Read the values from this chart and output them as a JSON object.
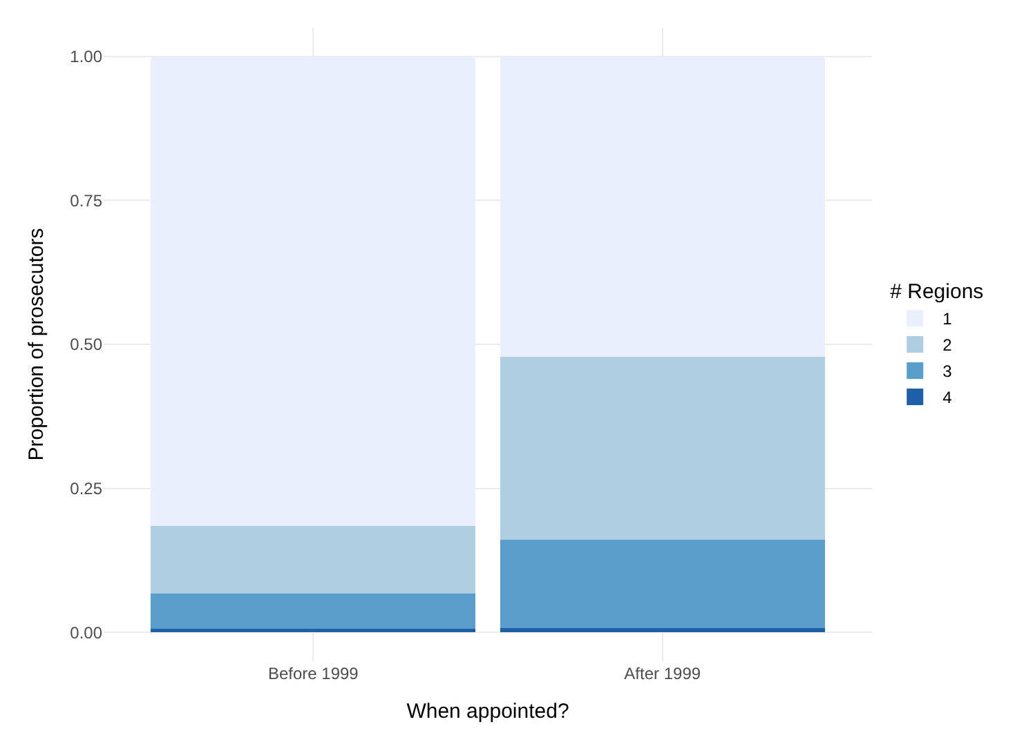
{
  "chart_data": {
    "type": "bar",
    "stacked": true,
    "xlabel": "When appointed?",
    "ylabel": "Proportion of prosecutors",
    "legend_title": "# Regions",
    "categories": [
      "Before 1999",
      "After 1999"
    ],
    "series": [
      {
        "name": "4",
        "color": "#1f5fa8",
        "values": [
          0.006,
          0.008
        ]
      },
      {
        "name": "3",
        "color": "#5a9ecc",
        "values": [
          0.061,
          0.153
        ]
      },
      {
        "name": "2",
        "color": "#b0cee2",
        "values": [
          0.118,
          0.317
        ]
      },
      {
        "name": "1",
        "color": "#e9effd",
        "values": [
          0.815,
          0.522
        ]
      }
    ],
    "ylim": [
      -0.05,
      1.05
    ],
    "yticks": [
      {
        "value": 0,
        "label": "0.00"
      },
      {
        "value": 0.25,
        "label": "0.25"
      },
      {
        "value": 0.5,
        "label": "0.50"
      },
      {
        "value": 0.75,
        "label": "0.75"
      },
      {
        "value": 1,
        "label": "1.00"
      }
    ],
    "grid": true,
    "legend": "right"
  }
}
